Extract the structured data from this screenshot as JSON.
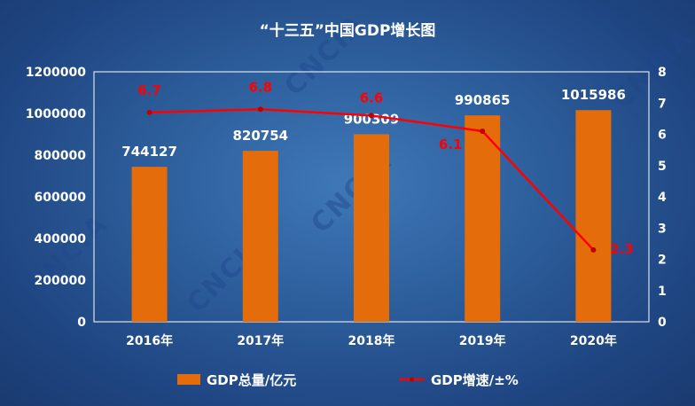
{
  "watermark": "CNCIA",
  "chart_data": {
    "type": "bar+line",
    "title": "“十三五”中国GDP增长图",
    "categories": [
      "2016年",
      "2017年",
      "2018年",
      "2019年",
      "2020年"
    ],
    "series": [
      {
        "name": "GDP总量/亿元",
        "type": "bar",
        "axis": "left",
        "color": "#e46c0a",
        "values": [
          744127,
          820754,
          900309,
          990865,
          1015986
        ],
        "labels": [
          "744127",
          "820754",
          "900309",
          "990865",
          "1015986"
        ]
      },
      {
        "name": "GDP增速/±%",
        "type": "line",
        "axis": "right",
        "color": "#ff0000",
        "values": [
          6.7,
          6.8,
          6.6,
          6.1,
          2.3
        ],
        "labels": [
          "6.7",
          "6.8",
          "6.6",
          "6.1",
          "2.3"
        ]
      }
    ],
    "y_left": {
      "range": [
        0,
        1200000
      ],
      "ticks": [
        "0",
        "200000",
        "400000",
        "600000",
        "800000",
        "1000000",
        "1200000"
      ]
    },
    "y_right": {
      "range": [
        0,
        8
      ],
      "ticks": [
        "0",
        "1",
        "2",
        "3",
        "4",
        "5",
        "6",
        "7",
        "8"
      ]
    },
    "legend": "bottom",
    "grid": false
  }
}
